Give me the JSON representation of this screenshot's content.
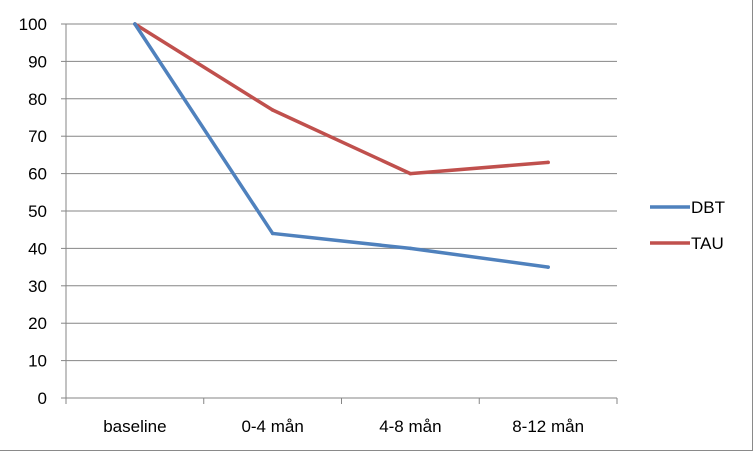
{
  "chart_data": {
    "type": "line",
    "title": "",
    "xlabel": "",
    "ylabel": "",
    "categories": [
      "baseline",
      "0-4 mån",
      "4-8 mån",
      "8-12 mån"
    ],
    "ylim": [
      0,
      100
    ],
    "yticks": [
      "0",
      "10",
      "20",
      "30",
      "40",
      "50",
      "60",
      "70",
      "80",
      "90",
      "100"
    ],
    "grid": true,
    "legend_position": "right",
    "series": [
      {
        "name": "DBT",
        "color": "#4F81BD",
        "values": [
          100,
          44,
          40,
          35
        ]
      },
      {
        "name": "TAU",
        "color": "#C0504D",
        "values": [
          100,
          77,
          60,
          63
        ]
      }
    ]
  }
}
